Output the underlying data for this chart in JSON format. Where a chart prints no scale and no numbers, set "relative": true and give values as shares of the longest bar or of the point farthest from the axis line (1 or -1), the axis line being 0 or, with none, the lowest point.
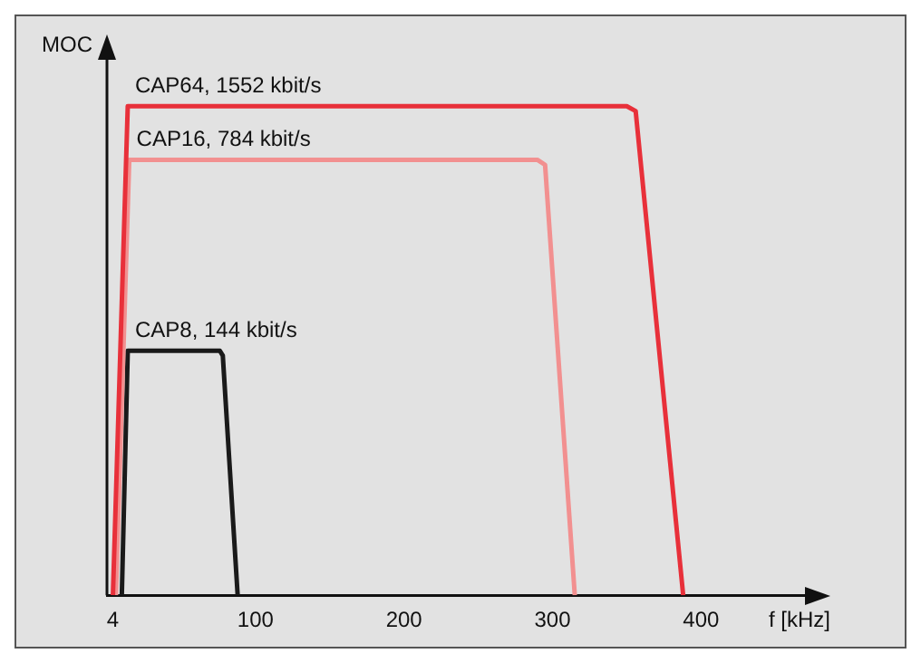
{
  "chart_data": {
    "type": "line",
    "relative": true,
    "xlabel": "f [kHz]",
    "ylabel": "MOC",
    "xlim": [
      0,
      470
    ],
    "xticks": [
      4,
      100,
      200,
      300,
      400
    ],
    "grid": false,
    "legend": false,
    "marker": "none",
    "line_style": "solid",
    "series": [
      {
        "name": "CAP64, 1552 kbit/s",
        "color": "#e8303a",
        "x": [
          4,
          14,
          350,
          356,
          388
        ],
        "values": [
          0,
          1,
          1,
          0.99,
          0
        ]
      },
      {
        "name": "CAP16, 784 kbit/s",
        "color": "#f29090",
        "x": [
          6,
          15,
          290,
          295,
          315
        ],
        "values": [
          0,
          0.89,
          0.89,
          0.88,
          0
        ]
      },
      {
        "name": "CAP8, 144 kbit/s",
        "color": "#1a1a1a",
        "x": [
          10,
          14,
          76,
          78,
          88
        ],
        "values": [
          0,
          0.5,
          0.5,
          0.49,
          0
        ]
      }
    ]
  }
}
